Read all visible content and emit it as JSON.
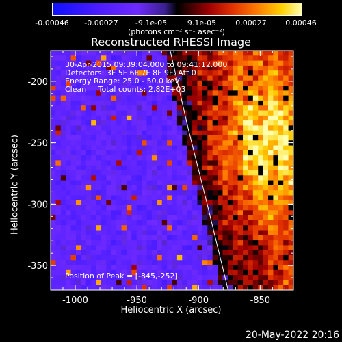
{
  "colorbar": {
    "ticks": [
      "-0.00046",
      "-0.00027",
      "-9.1e-05",
      "9.1e-05",
      "0.00027",
      "0.00046"
    ],
    "unit": "(photons cm⁻² s⁻¹ asec⁻²)"
  },
  "chart_data": {
    "type": "heatmap",
    "title": "Reconstructed RHESSI Image",
    "xlabel": "Heliocentric X (arcsec)",
    "ylabel": "Heliocentric Y (arcsec)",
    "xlim": [
      -1020,
      -823
    ],
    "ylim": [
      -370,
      -175
    ],
    "x_ticks": [
      "-1000",
      "-950",
      "-900",
      "-850"
    ],
    "y_ticks": [
      "-200",
      "-250",
      "-300",
      "-350"
    ],
    "x_tick_values": [
      -1000,
      -950,
      -900,
      -850
    ],
    "y_tick_values": [
      -200,
      -250,
      -300,
      -350
    ],
    "color_range": [
      -0.00046,
      0.00046
    ],
    "limb_curve": [
      [
        -923,
        -175
      ],
      [
        -908,
        -240
      ],
      [
        -893,
        -300
      ],
      [
        -876,
        -370
      ]
    ],
    "peak_position": [
      -845,
      -252
    ]
  },
  "annotations": {
    "time": "30-Apr-2015 09:39:04.000 to 09:41:12.000",
    "detectors": "Detectors: 3F 5F 6F 7F 8F 9F, Att 0",
    "energy": "Energy Range: 25.0 - 50.0 keV",
    "clean": "Clean     Total counts: 2.82E+03",
    "peak": "Position of Peak = [-845,-252]"
  },
  "datestamp": "20-May-2022 20:16"
}
